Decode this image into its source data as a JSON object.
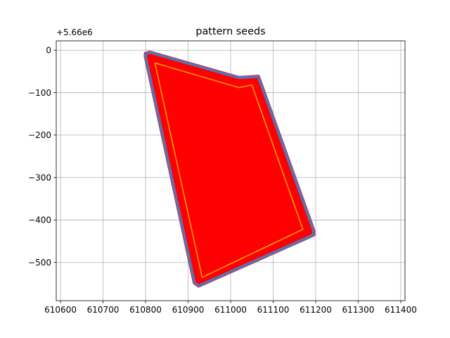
{
  "chart_data": {
    "type": "area",
    "title": "pattern seeds",
    "y_offset_label": "+5.66e6",
    "xlim": [
      610590,
      611410
    ],
    "ylim": [
      -590,
      22
    ],
    "xticks": [
      610600,
      610700,
      610800,
      610900,
      611000,
      611100,
      611200,
      611300,
      611400
    ],
    "yticks": [
      0,
      -100,
      -200,
      -300,
      -400,
      -500
    ],
    "grid": true,
    "series": [
      {
        "kind": "field-fill",
        "color": "#ff0000",
        "points": [
          [
            610800,
            -8
          ],
          [
            610810,
            -5
          ],
          [
            611020,
            -65
          ],
          [
            611065,
            -62
          ],
          [
            611195,
            -425
          ],
          [
            611195,
            -435
          ],
          [
            610925,
            -555
          ],
          [
            610915,
            -548
          ],
          [
            610800,
            -15
          ]
        ]
      },
      {
        "kind": "boundary",
        "color": "#5a72b0",
        "points": [
          [
            610800,
            -8
          ],
          [
            610810,
            -5
          ],
          [
            611020,
            -65
          ],
          [
            611065,
            -62
          ],
          [
            611195,
            -425
          ],
          [
            611195,
            -435
          ],
          [
            610925,
            -555
          ],
          [
            610915,
            -548
          ],
          [
            610800,
            -15
          ],
          [
            610800,
            -8
          ]
        ]
      },
      {
        "kind": "inner-line",
        "color": "#ffa500",
        "points": [
          [
            610822,
            -30
          ],
          [
            610985,
            -78
          ],
          [
            611020,
            -88
          ],
          [
            611050,
            -82
          ],
          [
            611170,
            -422
          ],
          [
            610933,
            -535
          ],
          [
            610822,
            -30
          ]
        ]
      }
    ]
  }
}
